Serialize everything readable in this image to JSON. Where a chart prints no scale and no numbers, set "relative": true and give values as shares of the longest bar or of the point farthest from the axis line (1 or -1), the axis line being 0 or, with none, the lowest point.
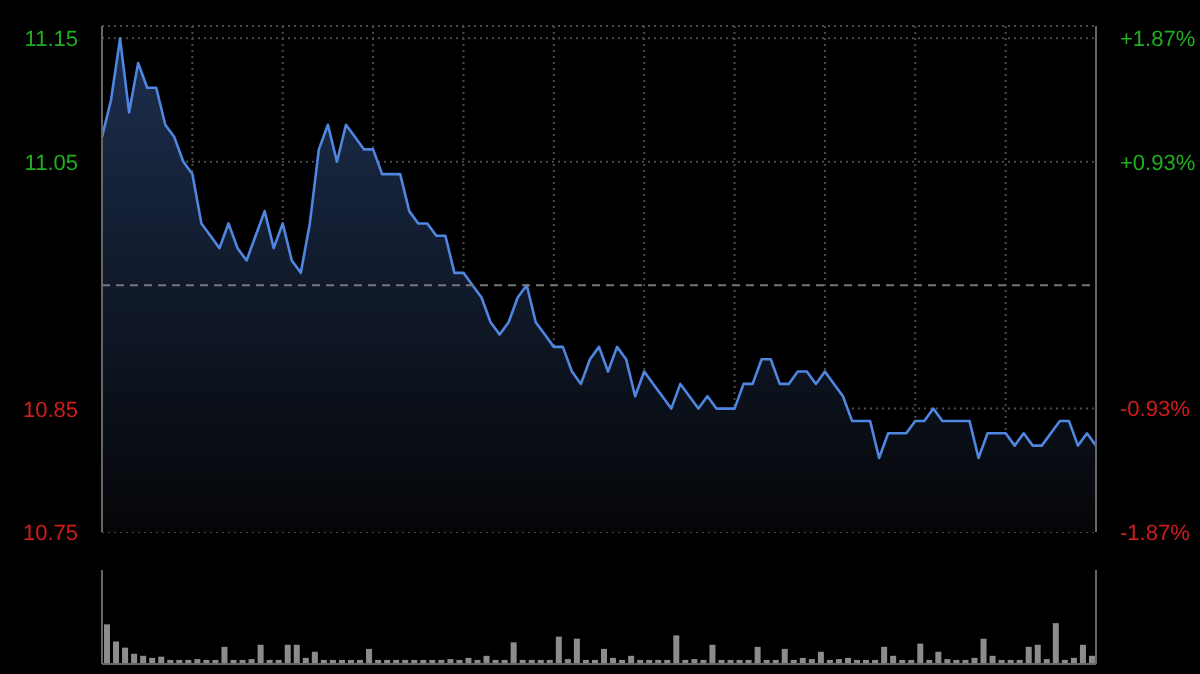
{
  "chart_data": [
    {
      "type": "area",
      "color": "#4f86e0",
      "tick_labels": "y",
      "grid": true,
      "ylim": [
        10.75,
        11.16
      ],
      "yticks": [
        10.75,
        10.85,
        11.05,
        11.15
      ],
      "y2lim": [
        -1.87,
        1.96
      ],
      "y2ticks": [
        {
          "value": -1.87,
          "label": "-1.87%"
        },
        {
          "value": -0.93,
          "label": "-0.93%"
        },
        {
          "value": 0.93,
          "label": "+0.93%"
        },
        {
          "value": 1.87,
          "label": "+1.87%"
        }
      ],
      "ref_lines": [
        {
          "axis": "y",
          "value": 10.95,
          "label": null,
          "line_style": "dashed",
          "color": "#777777"
        }
      ],
      "categories": [
        null,
        null,
        null,
        null,
        null,
        null,
        null,
        null,
        null,
        null,
        null,
        null,
        null,
        null,
        null,
        null,
        null,
        null,
        null,
        null,
        null,
        null,
        null,
        null,
        null,
        null,
        null,
        null,
        null,
        null,
        null,
        null,
        null,
        null,
        null,
        null,
        null,
        null,
        null,
        null,
        null,
        null,
        null,
        null,
        null,
        null,
        null,
        null,
        null,
        null,
        null,
        null,
        null,
        null,
        null,
        null,
        null,
        null,
        null,
        null,
        null,
        null,
        null,
        null,
        null,
        null,
        null,
        null,
        null,
        null,
        null,
        null,
        null,
        null,
        null,
        null,
        null,
        null,
        null,
        null,
        null,
        null,
        null,
        null,
        null,
        null,
        null,
        null,
        null,
        null,
        null,
        null,
        null,
        null,
        null,
        null,
        null,
        null,
        null,
        null,
        null,
        null,
        null,
        null,
        null,
        null,
        null,
        null,
        null,
        null,
        null
      ],
      "values": [
        11.07,
        11.1,
        11.15,
        11.09,
        11.13,
        11.11,
        11.11,
        11.08,
        11.07,
        11.05,
        11.04,
        11.0,
        10.99,
        10.98,
        11.0,
        10.98,
        10.97,
        10.99,
        11.01,
        10.98,
        11.0,
        10.97,
        10.96,
        11.0,
        11.06,
        11.08,
        11.05,
        11.08,
        11.07,
        11.06,
        11.06,
        11.04,
        11.04,
        11.04,
        11.01,
        11.0,
        11.0,
        10.99,
        10.99,
        10.96,
        10.96,
        10.95,
        10.94,
        10.92,
        10.91,
        10.92,
        10.94,
        10.95,
        10.92,
        10.91,
        10.9,
        10.9,
        10.88,
        10.87,
        10.89,
        10.9,
        10.88,
        10.9,
        10.89,
        10.86,
        10.88,
        10.87,
        10.86,
        10.85,
        10.87,
        10.86,
        10.85,
        10.86,
        10.85,
        10.85,
        10.85,
        10.87,
        10.87,
        10.89,
        10.89,
        10.87,
        10.87,
        10.88,
        10.88,
        10.87,
        10.88,
        10.87,
        10.86,
        10.84,
        10.84,
        10.84,
        10.81,
        10.83,
        10.83,
        10.83,
        10.84,
        10.84,
        10.85,
        10.84,
        10.84,
        10.84,
        10.84,
        10.81,
        10.83,
        10.83,
        10.83,
        10.82,
        10.83,
        10.82,
        10.82,
        10.83,
        10.84,
        10.84,
        10.82,
        10.83,
        10.82
      ]
    },
    {
      "type": "bar",
      "relative": true,
      "color": "#8c8c8c",
      "tick_labels": false,
      "categories": [
        null,
        null,
        null,
        null,
        null,
        null,
        null,
        null,
        null,
        null,
        null,
        null,
        null,
        null,
        null,
        null,
        null,
        null,
        null,
        null,
        null,
        null,
        null,
        null,
        null,
        null,
        null,
        null,
        null,
        null,
        null,
        null,
        null,
        null,
        null,
        null,
        null,
        null,
        null,
        null,
        null,
        null,
        null,
        null,
        null,
        null,
        null,
        null,
        null,
        null,
        null,
        null,
        null,
        null,
        null,
        null,
        null,
        null,
        null,
        null,
        null,
        null,
        null,
        null,
        null,
        null,
        null,
        null,
        null,
        null,
        null,
        null,
        null,
        null,
        null,
        null,
        null,
        null,
        null,
        null,
        null,
        null,
        null,
        null,
        null,
        null,
        null,
        null,
        null,
        null,
        null,
        null,
        null,
        null,
        null,
        null,
        null,
        null,
        null,
        null,
        null,
        null,
        null,
        null,
        null,
        null,
        null,
        null,
        null,
        null
      ],
      "values": [
        0.97,
        0.55,
        0.4,
        0.25,
        0.2,
        0.15,
        0.18,
        0.1,
        0.1,
        0.1,
        0.12,
        0.1,
        0.1,
        0.42,
        0.1,
        0.1,
        0.12,
        0.47,
        0.1,
        0.1,
        0.47,
        0.47,
        0.15,
        0.3,
        0.1,
        0.1,
        0.1,
        0.1,
        0.1,
        0.37,
        0.1,
        0.1,
        0.1,
        0.1,
        0.1,
        0.1,
        0.1,
        0.1,
        0.12,
        0.1,
        0.15,
        0.1,
        0.2,
        0.1,
        0.1,
        0.53,
        0.1,
        0.1,
        0.1,
        0.1,
        0.67,
        0.12,
        0.62,
        0.1,
        0.1,
        0.37,
        0.15,
        0.1,
        0.2,
        0.1,
        0.1,
        0.1,
        0.1,
        0.7,
        0.1,
        0.12,
        0.1,
        0.47,
        0.1,
        0.1,
        0.1,
        0.1,
        0.42,
        0.1,
        0.1,
        0.37,
        0.1,
        0.15,
        0.12,
        0.3,
        0.1,
        0.12,
        0.15,
        0.1,
        0.1,
        0.1,
        0.42,
        0.2,
        0.1,
        0.1,
        0.5,
        0.1,
        0.3,
        0.12,
        0.1,
        0.1,
        0.15,
        0.62,
        0.2,
        0.1,
        0.1,
        0.1,
        0.42,
        0.47,
        0.12,
        1,
        0.1,
        0.15,
        0.47,
        0.2
      ]
    }
  ]
}
